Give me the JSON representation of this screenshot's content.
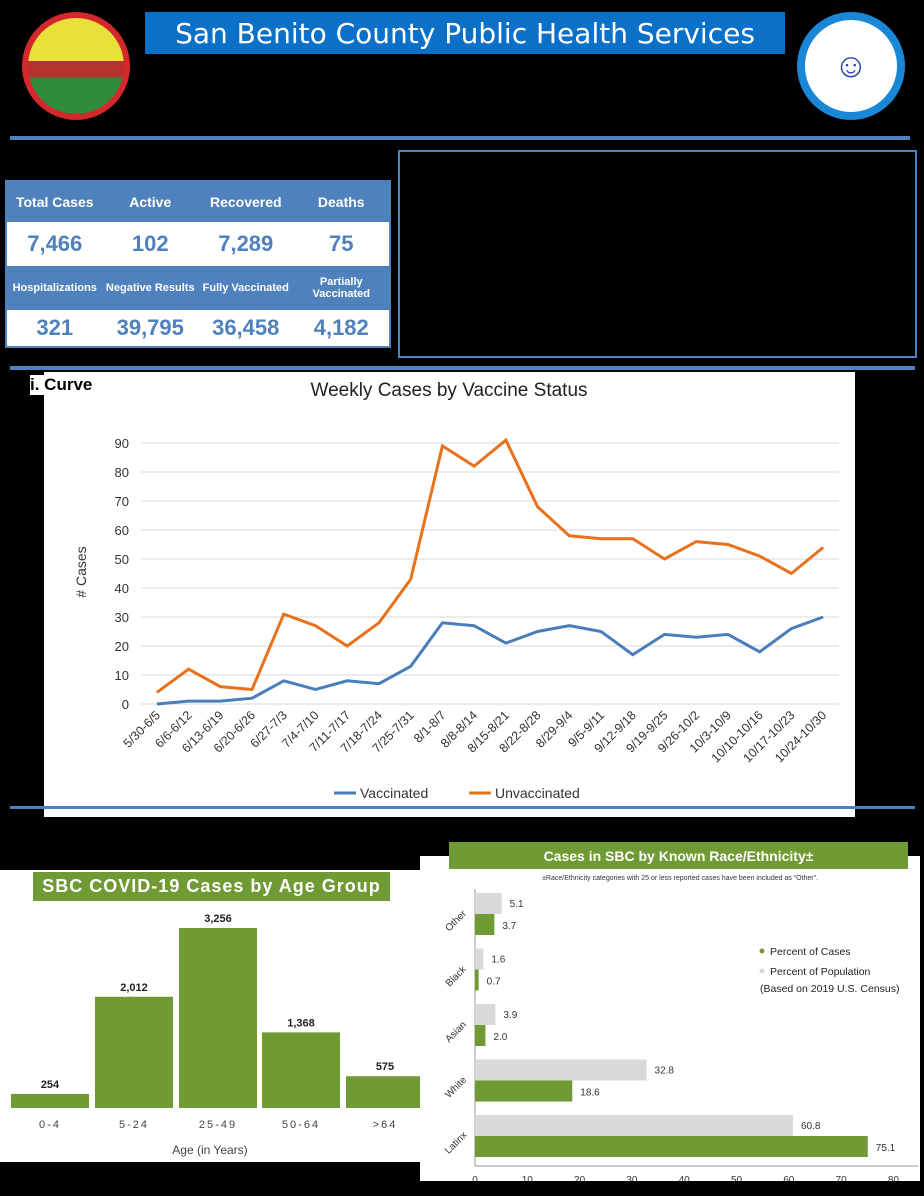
{
  "header": {
    "title": "San Benito County Public Health Services"
  },
  "stats": {
    "row1_labels": [
      "Total Cases",
      "Active",
      "Recovered",
      "Deaths"
    ],
    "row1_values": [
      "7,466",
      "102",
      "7,289",
      "75"
    ],
    "row2_labels": [
      "Hospitalizations",
      "Negative Results",
      "Fully Vaccinated",
      "Partially Vaccinated"
    ],
    "row2_values": [
      "321",
      "39,795",
      "36,458",
      "4,182"
    ]
  },
  "epi_label": "i. Curve",
  "chart_data": [
    {
      "type": "line",
      "title": "Weekly Cases by Vaccine Status",
      "xlabel": "",
      "ylabel": "# Cases",
      "ylim": [
        0,
        90
      ],
      "yticks": [
        0,
        10,
        20,
        30,
        40,
        50,
        60,
        70,
        80,
        90
      ],
      "grid": true,
      "legend": "bottom",
      "categories": [
        "5/30-6/5",
        "6/6-6/12",
        "6/13-6/19",
        "6/20-6/26",
        "6/27-7/3",
        "7/4-7/10",
        "7/11-7/17",
        "7/18-7/24",
        "7/25-7/31",
        "8/1-8/7",
        "8/8-8/14",
        "8/15-8/21",
        "8/22-8/28",
        "8/29-9/4",
        "9/5-9/11",
        "9/12-9/18",
        "9/19-9/25",
        "9/26-10/2",
        "10/3-10/9",
        "10/10-10/16",
        "10/17-10/23",
        "10/24-10/30"
      ],
      "series": [
        {
          "name": "Vaccinated",
          "color": "#4a7ebb",
          "values": [
            0,
            1,
            1,
            2,
            8,
            5,
            8,
            7,
            13,
            28,
            27,
            21,
            25,
            27,
            25,
            17,
            24,
            23,
            24,
            18,
            26,
            30
          ]
        },
        {
          "name": "Unvaccinated",
          "color": "#e8711c",
          "values": [
            4,
            12,
            6,
            5,
            31,
            27,
            20,
            28,
            43,
            89,
            82,
            91,
            68,
            58,
            57,
            57,
            50,
            56,
            55,
            51,
            45,
            54
          ]
        }
      ]
    },
    {
      "type": "bar",
      "title": "SBC COVID-19 Cases by Age Group",
      "xlabel": "Age (in Years)",
      "categories": [
        "0-4",
        "5-24",
        "25-49",
        "50-64",
        ">64"
      ],
      "values": [
        254,
        2012,
        3256,
        1368,
        575
      ],
      "labels": [
        "254",
        "2,012",
        "3,256",
        "1,368",
        "575"
      ],
      "color": "#6f9a34"
    },
    {
      "type": "bar",
      "orientation": "horizontal",
      "title": "Cases in SBC by Known Race/Ethnicity±",
      "note": "±Race/Ethnicity categories with 25 or less reported cases have been included as “Other”.",
      "categories": [
        "Other",
        "Black",
        "Asian",
        "White",
        "Latinx"
      ],
      "xlim": [
        0,
        80
      ],
      "xticks": [
        0,
        10,
        20,
        30,
        40,
        50,
        60,
        70,
        80
      ],
      "series": [
        {
          "name": "Percent of Cases",
          "color": "#6f9a34",
          "values": [
            3.7,
            0.7,
            2.0,
            18.6,
            75.1
          ]
        },
        {
          "name": "Percent of Population",
          "color": "#d9d9d9",
          "values": [
            5.1,
            1.6,
            3.9,
            32.8,
            60.8
          ]
        }
      ],
      "legend_note": "(Based on 2019 U.S. Census)",
      "legend": "right"
    }
  ]
}
